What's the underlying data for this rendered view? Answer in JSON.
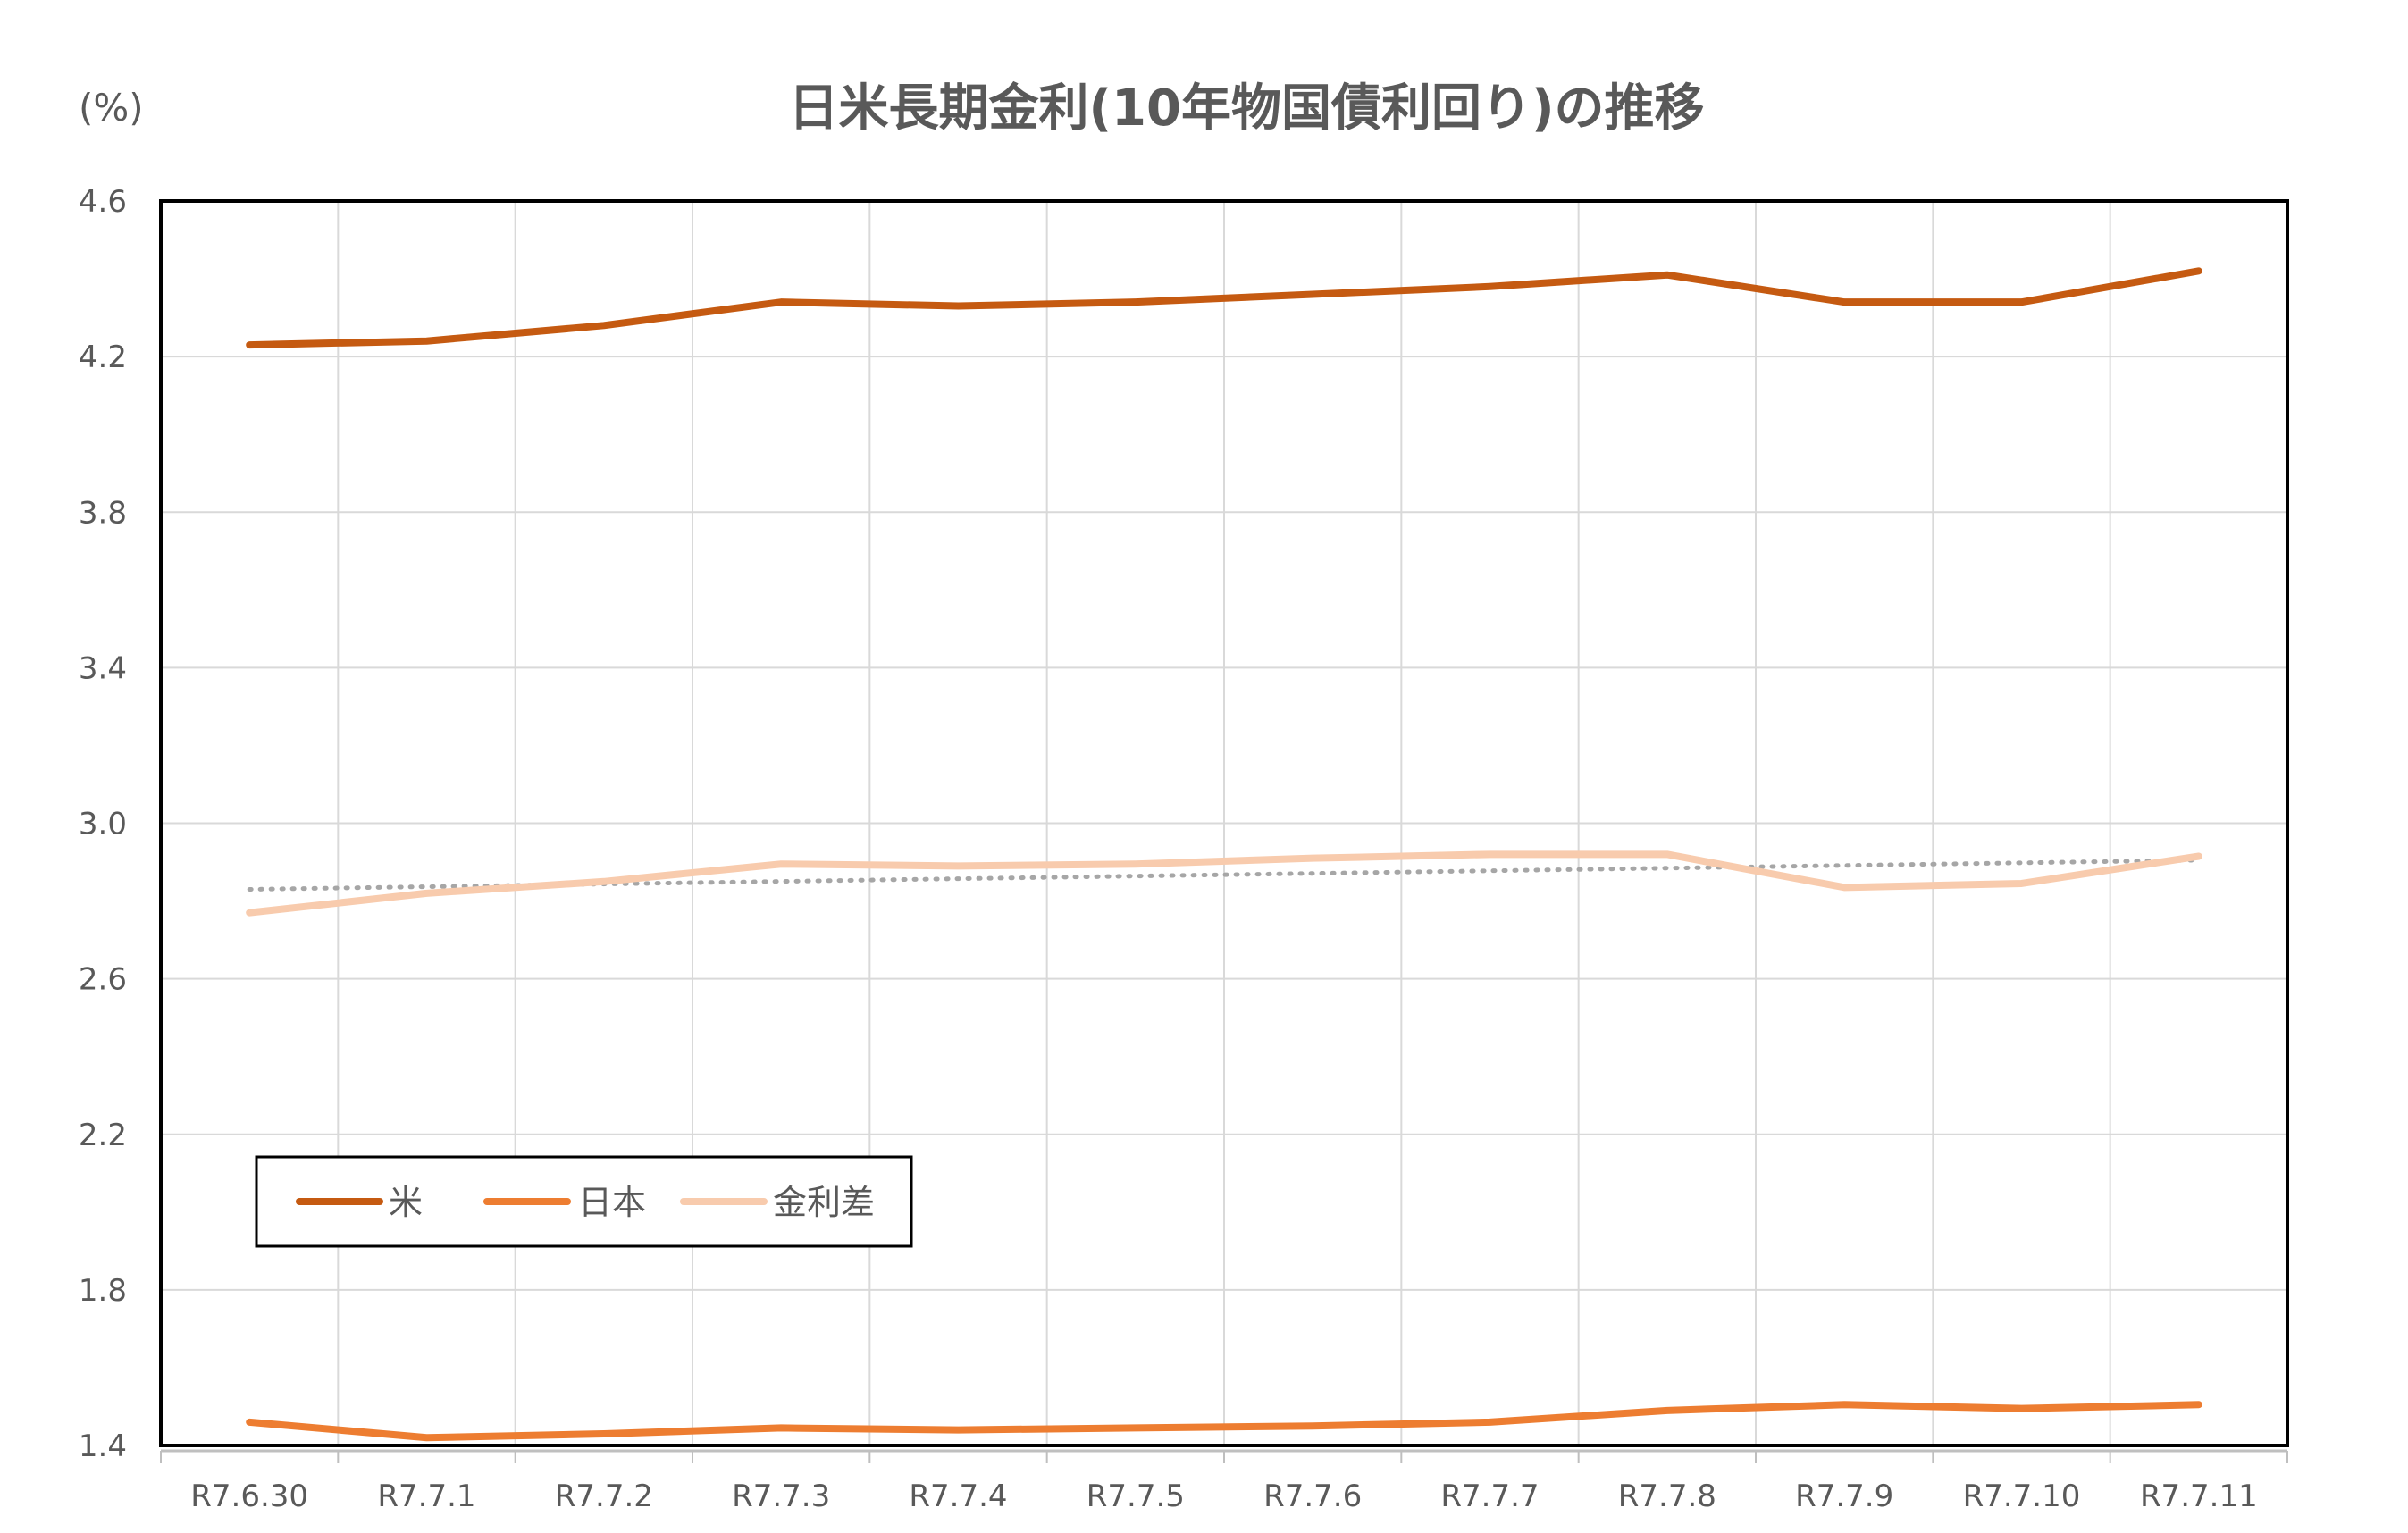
{
  "chart_data": {
    "type": "line",
    "title": "日米長期金利(10年物国債利回り)の推移",
    "unit_label": "(%)",
    "categories": [
      "R7.6.30",
      "R7.7.1",
      "R7.7.2",
      "R7.7.3",
      "R7.7.4",
      "R7.7.5",
      "R7.7.6",
      "R7.7.7",
      "R7.7.8",
      "R7.7.9",
      "R7.7.10",
      "R7.7.11"
    ],
    "ylim": [
      1.4,
      4.6
    ],
    "yticks": [
      "4.6",
      "4.2",
      "3.8",
      "3.4",
      "3.0",
      "2.6",
      "2.2",
      "1.8",
      "1.4"
    ],
    "grid": true,
    "legend_position": "lower-left",
    "series": [
      {
        "name": "米",
        "color": "#C55A11",
        "values": [
          4.23,
          4.24,
          4.28,
          4.34,
          4.33,
          4.34,
          4.36,
          4.38,
          4.41,
          4.34,
          4.34,
          4.42
        ]
      },
      {
        "name": "日本",
        "color": "#ED7D31",
        "values": [
          1.46,
          1.42,
          1.43,
          1.445,
          1.44,
          1.445,
          1.45,
          1.46,
          1.49,
          1.505,
          1.495,
          1.505
        ]
      },
      {
        "name": "金利差",
        "color": "#F8CBAD",
        "values": [
          2.77,
          2.82,
          2.85,
          2.895,
          2.89,
          2.895,
          2.91,
          2.92,
          2.92,
          2.835,
          2.845,
          2.915
        ]
      }
    ],
    "trendline": {
      "of_series": "金利差",
      "style": "dotted",
      "color": "#A6A6A6",
      "start": 2.83,
      "end": 2.905
    }
  }
}
